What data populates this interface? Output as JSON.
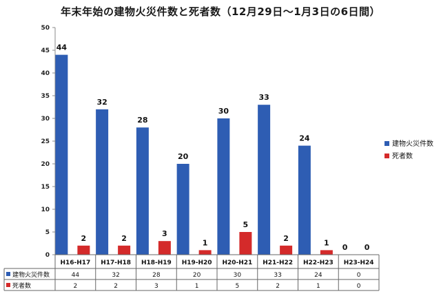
{
  "chart_data": {
    "type": "bar",
    "title": "年末年始の建物火災件数と死者数（12月29日～1月3日の6日間）",
    "categories": [
      "H16-H17",
      "H17-H18",
      "H18-H19",
      "H19-H20",
      "H20-H21",
      "H21-H22",
      "H22-H23",
      "H23-H24"
    ],
    "series": [
      {
        "name": "建物火災件数",
        "color": "#2e5db3",
        "values": [
          44,
          32,
          28,
          20,
          30,
          33,
          24,
          0
        ],
        "labels": [
          "44",
          "32",
          "28",
          "20",
          "30",
          "33",
          "24",
          "0"
        ]
      },
      {
        "name": "死者数",
        "color": "#d42a2a",
        "values": [
          2,
          2,
          3,
          1,
          5,
          2,
          1,
          0
        ],
        "labels": [
          "2",
          "2",
          "3",
          "1",
          "5",
          "2",
          "1",
          "0"
        ]
      }
    ],
    "ylim": [
      0,
      50
    ],
    "yticks": [
      0,
      5,
      10,
      15,
      20,
      25,
      30,
      35,
      40,
      45,
      50
    ],
    "legend_position": "right",
    "data_table": true
  }
}
